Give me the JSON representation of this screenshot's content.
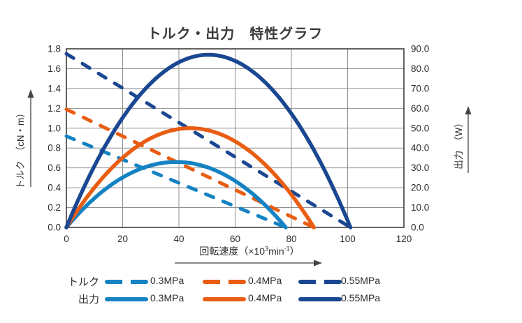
{
  "title": "トルク・出力　特性グラフ",
  "colors": {
    "p03": "#1482c3",
    "p04": "#e95d12",
    "p055": "#1a4791",
    "grid": "#8f8f8f",
    "border": "#3c3c3c",
    "tick_text": "#2b2b2b",
    "arrow": "#444444"
  },
  "chart_data": {
    "type": "line",
    "title": "トルク・出力　特性グラフ",
    "grid": true,
    "x_axis": {
      "full_label": "回転速度（×10³min⁻¹）",
      "label_prefix": "回転速度（×10",
      "label_sup1": "3",
      "label_mid": "min",
      "label_sup2": "-1",
      "label_suffix": "）",
      "min": 0,
      "max": 120,
      "ticks": [
        0,
        20,
        40,
        60,
        80,
        100,
        120
      ]
    },
    "y_left": {
      "label": "トルク　（cN・m）",
      "unit": "cN·m",
      "min": 0,
      "max": 1.8,
      "ticks": [
        "1.8",
        "1.6",
        "1.4",
        "1.2",
        "1.0",
        "0.8",
        "0.6",
        "0.4",
        "0.2",
        "0.0"
      ]
    },
    "y_right": {
      "label": "出力　（W）",
      "unit": "W",
      "min": 0,
      "max": 90,
      "ticks": [
        "90.0",
        "80.0",
        "70.0",
        "60.0",
        "50.0",
        "40.0",
        "30.0",
        "20.0",
        "10.0",
        "0.0"
      ]
    },
    "series": [
      {
        "name": "トルク 0.3MPa",
        "group": "torque",
        "pressure": "0.3MPa",
        "style": "dashed",
        "color_key": "p03",
        "axis": "left",
        "points": [
          [
            0,
            0.92
          ],
          [
            78,
            0
          ]
        ],
        "torque_at_zero_speed_cNm": 0.92,
        "no_load_speed": 78
      },
      {
        "name": "トルク 0.4MPa",
        "group": "torque",
        "pressure": "0.4MPa",
        "style": "dashed",
        "color_key": "p04",
        "axis": "left",
        "points": [
          [
            0,
            1.19
          ],
          [
            88,
            0
          ]
        ],
        "torque_at_zero_speed_cNm": 1.19,
        "no_load_speed": 88
      },
      {
        "name": "トルク 0.55MPa",
        "group": "torque",
        "pressure": "0.55MPa",
        "style": "dashed",
        "color_key": "p055",
        "axis": "left",
        "points": [
          [
            0,
            1.75
          ],
          [
            101,
            0
          ]
        ],
        "torque_at_zero_speed_cNm": 1.75,
        "no_load_speed": 101
      },
      {
        "name": "出力 0.3MPa",
        "group": "power",
        "pressure": "0.3MPa",
        "style": "solid",
        "color_key": "p03",
        "axis": "right",
        "shape": "parabola",
        "zeros": [
          0,
          78
        ],
        "peak_speed": 39,
        "max_output_W": 33
      },
      {
        "name": "出力 0.4MPa",
        "group": "power",
        "pressure": "0.4MPa",
        "style": "solid",
        "color_key": "p04",
        "axis": "right",
        "shape": "parabola",
        "zeros": [
          0,
          88
        ],
        "peak_speed": 44,
        "max_output_W": 50
      },
      {
        "name": "出力 0.55MPa",
        "group": "power",
        "pressure": "0.55MPa",
        "style": "solid",
        "color_key": "p055",
        "axis": "right",
        "shape": "parabola",
        "zeros": [
          0,
          101
        ],
        "peak_speed": 50.5,
        "max_output_W": 87
      }
    ]
  },
  "legend": {
    "rows": [
      {
        "label": "トルク",
        "items": [
          {
            "text": "0.3MPa",
            "style": "dashed",
            "color_key": "p03"
          },
          {
            "text": "0.4MPa",
            "style": "dashed",
            "color_key": "p04"
          },
          {
            "text": "0.55MPa",
            "style": "dashed",
            "color_key": "p055"
          }
        ]
      },
      {
        "label": "出力",
        "items": [
          {
            "text": "0.3MPa",
            "style": "solid",
            "color_key": "p03"
          },
          {
            "text": "0.4MPa",
            "style": "solid",
            "color_key": "p04"
          },
          {
            "text": "0.55MPa",
            "style": "solid",
            "color_key": "p055"
          }
        ]
      }
    ]
  }
}
